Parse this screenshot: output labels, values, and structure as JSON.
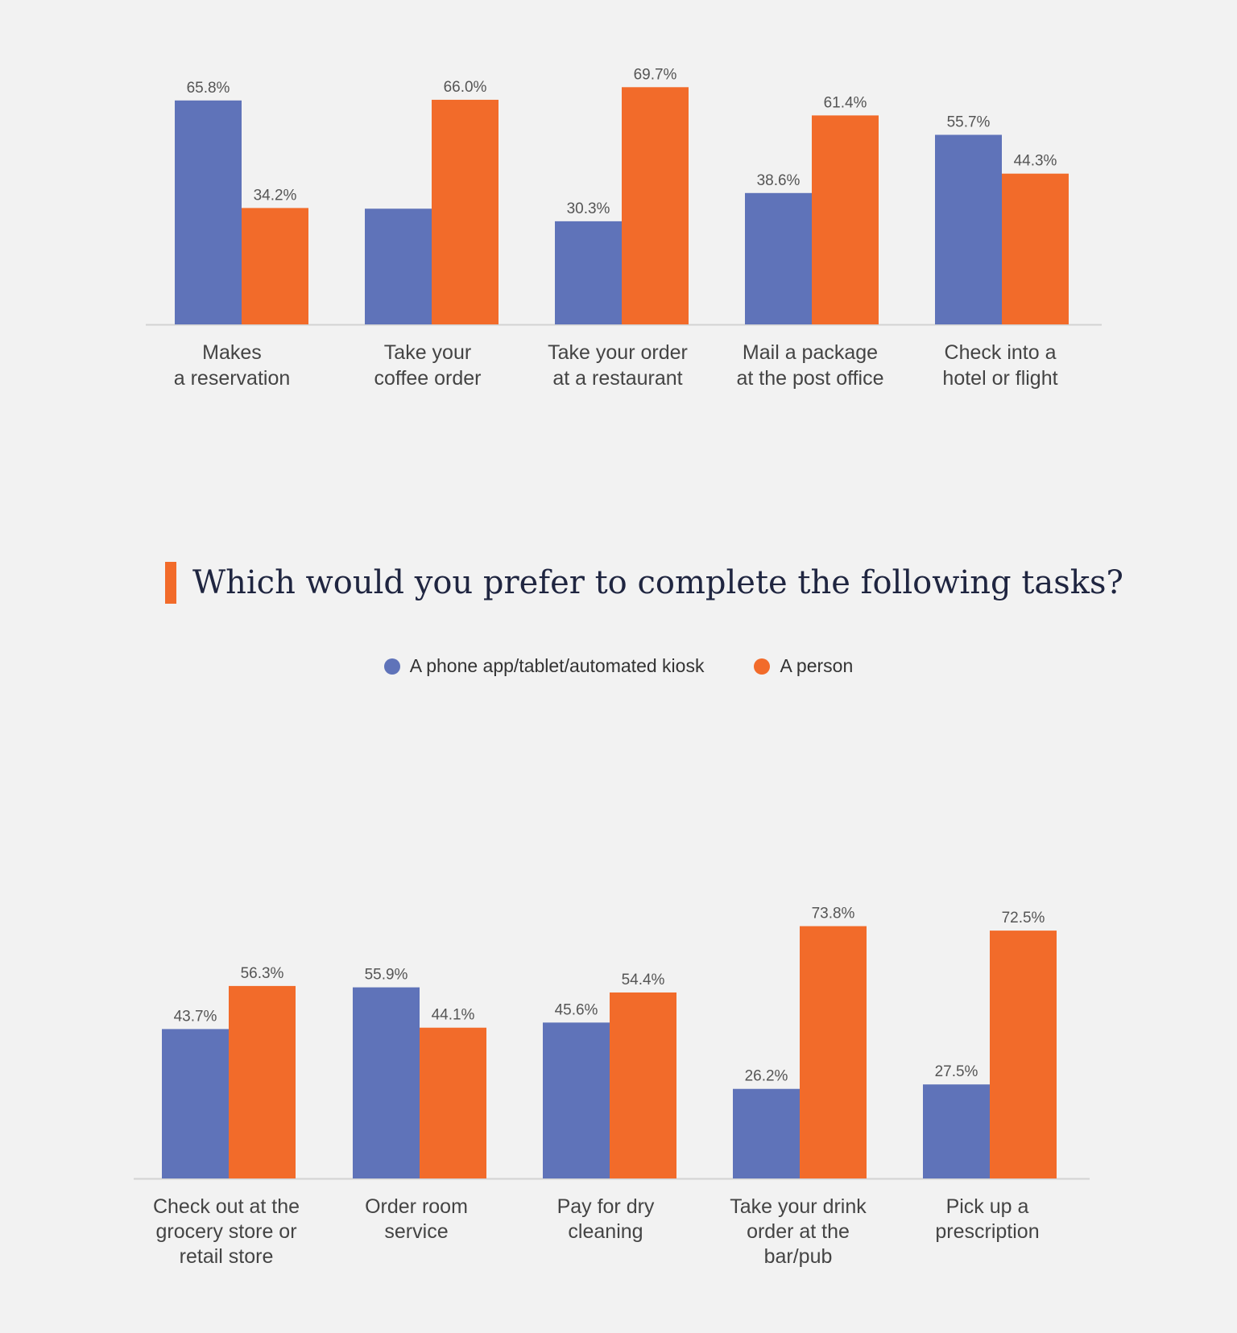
{
  "title": "Which would you prefer to complete the following tasks?",
  "legend": {
    "series_a": "A phone app/tablet/automated kiosk",
    "series_b": "A person"
  },
  "colors": {
    "series_a": "#5f73b9",
    "series_b": "#f26b2a",
    "accent": "#f26b2a",
    "background": "#f2f2f2"
  },
  "chart_data": [
    {
      "type": "bar",
      "categories": [
        "Makes\na reservation",
        "Take your\ncoffee order",
        "Take your order\nat a restaurant",
        "Mail a package\nat the post office",
        "Check into a\nhotel or flight"
      ],
      "series": [
        {
          "name": "A phone app/tablet/automated kiosk",
          "values": [
            65.8,
            34.0,
            30.3,
            38.6,
            55.7
          ],
          "labels": [
            "65.8%",
            "",
            "30.3%",
            "38.6%",
            "55.7%"
          ]
        },
        {
          "name": "A person",
          "values": [
            34.2,
            66.0,
            69.7,
            61.4,
            44.3
          ],
          "labels": [
            "34.2%",
            "66.0%",
            "69.7%",
            "61.4%",
            "44.3%"
          ]
        }
      ],
      "ylim": [
        0,
        100
      ],
      "grid": false
    },
    {
      "type": "bar",
      "categories": [
        "Check out at the\ngrocery store or\nretail store",
        "Order room\nservice",
        "Pay for dry\ncleaning",
        "Take your drink\norder at the\nbar/pub",
        "Pick up a\nprescription"
      ],
      "series": [
        {
          "name": "A phone app/tablet/automated kiosk",
          "values": [
            43.7,
            55.9,
            45.6,
            26.2,
            27.5
          ],
          "labels": [
            "43.7%",
            "55.9%",
            "45.6%",
            "26.2%",
            "27.5%"
          ]
        },
        {
          "name": "A person",
          "values": [
            56.3,
            44.1,
            54.4,
            73.8,
            72.5
          ],
          "labels": [
            "56.3%",
            "44.1%",
            "54.4%",
            "73.8%",
            "72.5%"
          ]
        }
      ],
      "ylim": [
        0,
        100
      ],
      "grid": false
    }
  ]
}
